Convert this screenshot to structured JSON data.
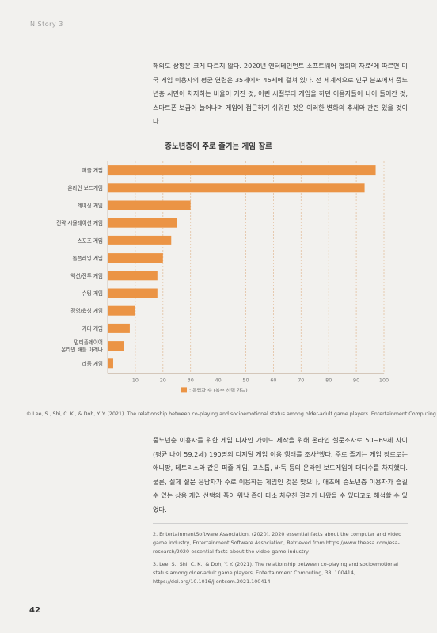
{
  "header": {
    "running_head": "N Story 3"
  },
  "body": {
    "paragraph1": "해외도 상황은 크게 다르지 않다. 2020년 엔터테인먼트 소프트웨어 협회의 자료²에 따르면 미국 게임 이용자의 평균 연령은 35세에서 45세에 걸쳐 있다. 전 세계적으로 인구 분포에서 중노년층 시민이 차지하는 비율이 커진 것, 어린 시절부터 게임을 하던 이용자들이 나이 들어간 것, 스마트폰 보급이 늘어나며 게임에 접근하기 쉬워진 것은 이러한 변화의 추세와 관련 있을 것이다.",
    "paragraph2": "중노년층 이용자를 위한 게임 디자인 가이드 제작을 위해 온라인 설문조사로 50~69세 사이(평균 나이 59.2세) 190명의 디지털 게임 이용 행태를 조사³했다. 주로 즐기는 게임 장르로는 애니팡, 테트리스와 같은 퍼즐 게임, 고스톱, 바둑 등의 온라인 보드게임이 대다수를 차지했다. 물론, 실제 설문 응답자가 주로 이용하는 게임인 것은 맞으나, 애초에 중노년층 이용자가 즐길 수 있는 상용 게임 선택의 폭이 워낙 좁아 다소 치우친 결과가 나왔을 수 있다고도 해석할 수 있었다."
  },
  "chart_data": {
    "type": "bar",
    "orientation": "horizontal",
    "title": "중노년층이 주로 즐기는 게임 장르",
    "categories": [
      "퍼즐 게임",
      "온라인 보드게임",
      "레이싱 게임",
      "전략 시뮬레이션 게임",
      "스포츠 게임",
      "롤플레잉 게임",
      "액션/전투 게임",
      "슈팅 게임",
      "경영/육성 게임",
      "기타 게임",
      "멀티플레이어 온라인 배틀 아레나",
      "리듬 게임"
    ],
    "series": [
      {
        "name": ": 응답자 수 (복수 선택 가능)",
        "values": [
          97,
          93,
          30,
          25,
          23,
          20,
          18,
          18,
          10,
          8,
          6,
          2
        ]
      }
    ],
    "xlim": [
      0,
      100
    ],
    "xticks": [
      10,
      20,
      30,
      40,
      50,
      60,
      70,
      80,
      90,
      100
    ],
    "grid": true,
    "legend_position": "bottom-center",
    "bar_color": "#eb9445",
    "grid_color": "#e3c1a0"
  },
  "caption": "© Lee, S., Shi, C. K., & Doh, Y. Y. (2021). The relationship between co-playing and socioemotional status among older-adult game players. Entertainment Computing",
  "footnotes": [
    "2. EntertainmentSoftware Association. (2020). 2020 essential facts about the computer and video game industry, Entertainment Software Association, Retrieved from https://www.theesa.com/esa-research/2020-essential-facts-about-the-video-game-industry",
    "3. Lee, S., Shi, C. K., & Doh, Y. Y. (2021). The relationship between co-playing and socioemotional status among older-adult game players, Entertainment Computing, 38, 100414, https://doi.org/10.1016/j.entcom.2021.100414"
  ],
  "page_number": "42"
}
